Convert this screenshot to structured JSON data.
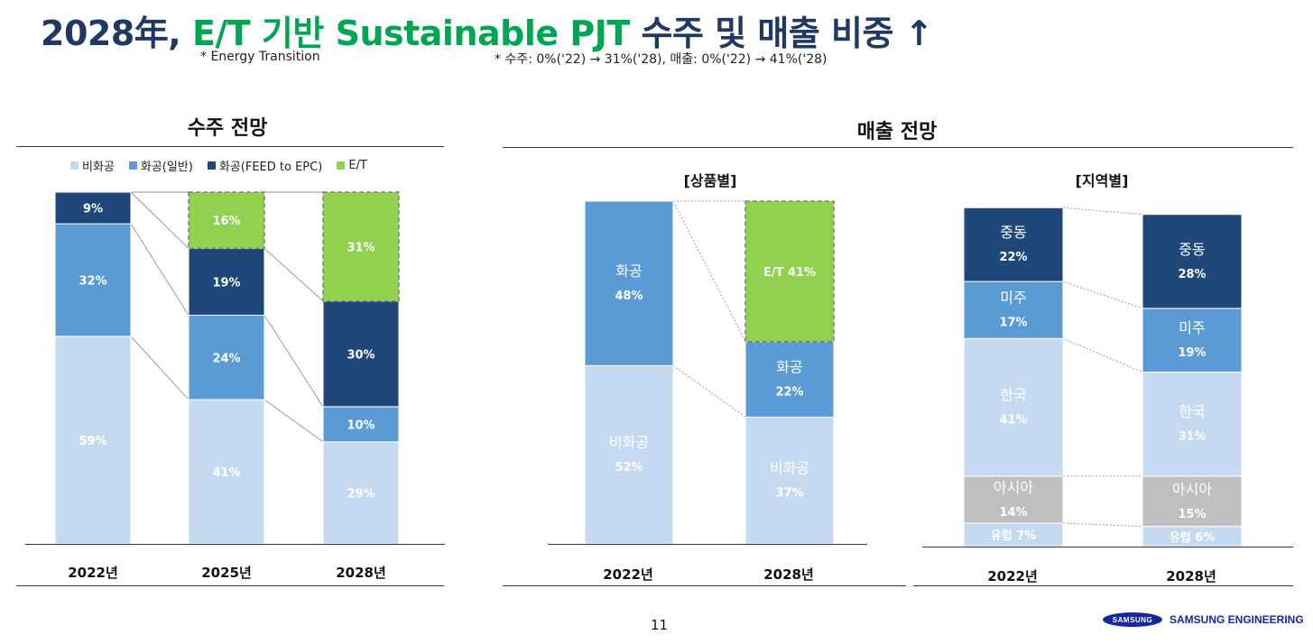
{
  "header": {
    "title_prefix": "2028年, ",
    "title_highlight": "E/T 기반 Sustainable PJT",
    "title_suffix": " 수주 및 매출 비중 ↑",
    "note_et": "* Energy Transition",
    "note_ratio": "* 수주: 0%('22) → 31%('28), 매출: 0%('22) → 41%('28)"
  },
  "orders": {
    "title": "수주 전망"
  },
  "sales": {
    "title": "매출 전망",
    "product_title": "[상품별]",
    "region_title": "[지역별]"
  },
  "footer": {
    "page": "11",
    "samsung": "SAMSUNG",
    "company": "SAMSUNG ENGINEERING"
  },
  "colors": {
    "light": "#C5D9F1",
    "mid": "#5B9BD5",
    "dark": "#1F477A",
    "green": "#92D050",
    "gray": "#BFBFBF"
  },
  "chart_data": [
    {
      "type": "bar",
      "stacked": true,
      "title": "수주 전망",
      "categories": [
        "2022년",
        "2025년",
        "2028년"
      ],
      "ylim": [
        0,
        100
      ],
      "series": [
        {
          "name": "비화공",
          "color": "light",
          "values": [
            59,
            41,
            29
          ],
          "labels": [
            "59%",
            "41%",
            "29%"
          ]
        },
        {
          "name": "화공(일반)",
          "color": "mid",
          "values": [
            32,
            24,
            10
          ],
          "labels": [
            "32%",
            "24%",
            "10%"
          ]
        },
        {
          "name": "화공(FEED to EPC)",
          "color": "dark",
          "values": [
            9,
            19,
            30
          ],
          "labels": [
            "9%",
            "19%",
            "30%"
          ]
        },
        {
          "name": "E/T",
          "color": "green",
          "values": [
            0,
            16,
            31
          ],
          "labels": [
            "",
            "16%",
            "31%"
          ]
        }
      ]
    },
    {
      "type": "bar",
      "stacked": true,
      "title": "[상품별]",
      "categories": [
        "2022년",
        "2028년"
      ],
      "ylim": [
        0,
        100
      ],
      "series": [
        {
          "name": "비화공",
          "color": "light",
          "values": [
            52,
            37
          ],
          "labels": [
            "비화공\n52%",
            "비화공\n37%"
          ]
        },
        {
          "name": "화공",
          "color": "mid",
          "values": [
            48,
            22
          ],
          "labels": [
            "화공\n48%",
            "화공\n22%"
          ]
        },
        {
          "name": "E/T",
          "color": "green",
          "values": [
            0,
            41
          ],
          "labels": [
            "",
            "E/T 41%"
          ]
        }
      ]
    },
    {
      "type": "bar",
      "stacked": true,
      "title": "[지역별]",
      "categories": [
        "2022년",
        "2028년"
      ],
      "ylim": [
        0,
        100
      ],
      "series": [
        {
          "name": "유럽",
          "color": "light",
          "values": [
            7,
            6
          ],
          "labels": [
            "유럽 7%",
            "유럽 6%"
          ]
        },
        {
          "name": "아시아",
          "color": "gray",
          "values": [
            14,
            15
          ],
          "labels": [
            "아시아\n14%",
            "아시아\n15%"
          ]
        },
        {
          "name": "한국",
          "color": "light",
          "values": [
            41,
            31
          ],
          "labels": [
            "한국\n41%",
            "한국\n31%"
          ]
        },
        {
          "name": "미주",
          "color": "mid",
          "values": [
            17,
            19
          ],
          "labels": [
            "미주\n17%",
            "미주\n19%"
          ]
        },
        {
          "name": "중동",
          "color": "dark",
          "values": [
            22,
            28
          ],
          "labels": [
            "중동\n22%",
            "중동\n28%"
          ]
        }
      ]
    }
  ]
}
